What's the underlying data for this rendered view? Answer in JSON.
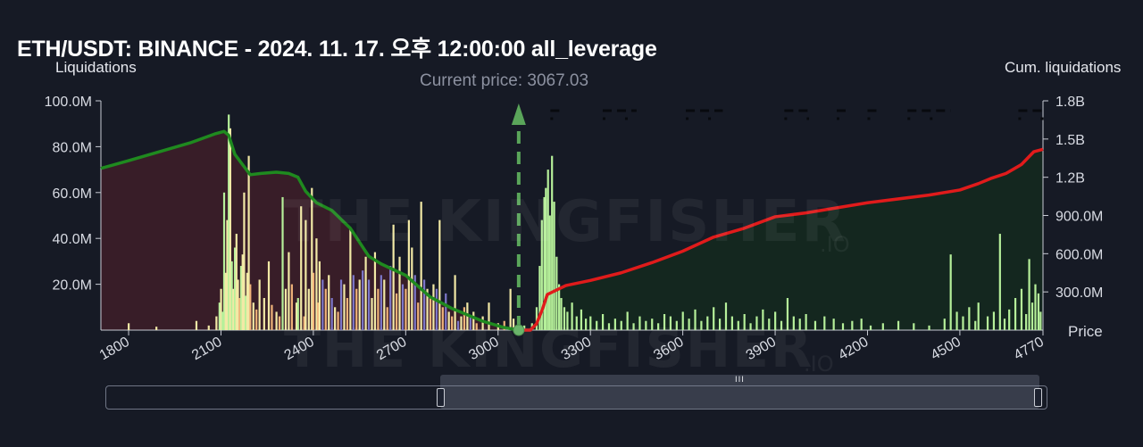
{
  "title": "ETH/USDT: BINANCE - 2024. 11. 17. 오후 12:00:00 all_leverage",
  "left_axis_name": "Liquidations",
  "right_axis_name": "Cum. liquidations",
  "current_price_label": "Current price: 3067.03",
  "price_axis_name": "Price",
  "watermark": {
    "main": "THE KINGFISHER",
    "suffix": ".IO"
  },
  "colors": {
    "background": "#161a25",
    "short_cum": "#1f8a1f",
    "long_cum": "#e01b1b",
    "short_area": "#3a1e28",
    "long_area": "#14281f",
    "bar_green": "#b6f09a",
    "bar_yellow": "#f2e9a6",
    "bar_orange": "#f0b37a",
    "bar_purple": "#7d77c9",
    "current_price_line": "#5aa55a"
  },
  "slider": {
    "grip": "III"
  },
  "chart_data": {
    "type": "bar+line",
    "xlim": [
      1710,
      4770
    ],
    "current_price": 3067.03,
    "x_ticks": [
      1800,
      2100,
      2400,
      2700,
      3000,
      3300,
      3600,
      3900,
      4200,
      4500,
      4770
    ],
    "x_tick_labels": [
      "1800",
      "2100",
      "2400",
      "2700",
      "3000",
      "3300",
      "3600",
      "3900",
      "4200",
      "4500",
      "4770"
    ],
    "left_axis": {
      "label": "Liquidations",
      "ylim": [
        0,
        100000000
      ],
      "ticks": [
        20000000,
        40000000,
        60000000,
        80000000,
        100000000
      ],
      "tick_labels": [
        "20.0M",
        "40.0M",
        "60.0M",
        "80.0M",
        "100.0M"
      ]
    },
    "right_axis": {
      "label": "Cum. liquidations",
      "ylim": [
        0,
        1800000000
      ],
      "ticks": [
        300000000,
        600000000,
        900000000,
        1200000000,
        1500000000,
        1800000000
      ],
      "tick_labels": [
        "300.0M",
        "600.0M",
        "900.0M",
        "1.2B",
        "1.5B",
        "1.8B"
      ]
    },
    "series": [
      {
        "kind": "cumulative_short_side",
        "color": "green",
        "points": [
          [
            1710,
            1270000000
          ],
          [
            1800,
            1330000000
          ],
          [
            1900,
            1400000000
          ],
          [
            2000,
            1470000000
          ],
          [
            2080,
            1540000000
          ],
          [
            2110,
            1560000000
          ],
          [
            2125,
            1530000000
          ],
          [
            2145,
            1380000000
          ],
          [
            2170,
            1300000000
          ],
          [
            2195,
            1220000000
          ],
          [
            2230,
            1230000000
          ],
          [
            2280,
            1240000000
          ],
          [
            2320,
            1230000000
          ],
          [
            2350,
            1200000000
          ],
          [
            2375,
            1090000000
          ],
          [
            2410,
            1000000000
          ],
          [
            2460,
            940000000
          ],
          [
            2520,
            800000000
          ],
          [
            2580,
            580000000
          ],
          [
            2620,
            520000000
          ],
          [
            2700,
            430000000
          ],
          [
            2780,
            260000000
          ],
          [
            2850,
            170000000
          ],
          [
            2950,
            70000000
          ],
          [
            3020,
            20000000
          ],
          [
            3067,
            0
          ]
        ]
      },
      {
        "kind": "cumulative_long_side",
        "color": "red",
        "points": [
          [
            3067,
            0
          ],
          [
            3105,
            0
          ],
          [
            3125,
            50000000
          ],
          [
            3145,
            170000000
          ],
          [
            3160,
            280000000
          ],
          [
            3220,
            350000000
          ],
          [
            3300,
            390000000
          ],
          [
            3400,
            450000000
          ],
          [
            3500,
            530000000
          ],
          [
            3600,
            620000000
          ],
          [
            3700,
            730000000
          ],
          [
            3800,
            800000000
          ],
          [
            3900,
            890000000
          ],
          [
            4000,
            920000000
          ],
          [
            4200,
            1000000000
          ],
          [
            4400,
            1060000000
          ],
          [
            4500,
            1100000000
          ],
          [
            4560,
            1150000000
          ],
          [
            4600,
            1190000000
          ],
          [
            4650,
            1230000000
          ],
          [
            4700,
            1300000000
          ],
          [
            4740,
            1400000000
          ],
          [
            4770,
            1420000000
          ]
        ]
      }
    ],
    "bars": [
      [
        1800,
        3000000,
        "bar_yellow"
      ],
      [
        1890,
        1500000,
        "bar_yellow"
      ],
      [
        2020,
        4000000,
        "bar_yellow"
      ],
      [
        2060,
        2000000,
        "bar_yellow"
      ],
      [
        2085,
        6000000,
        "bar_yellow"
      ],
      [
        2095,
        12000000,
        "bar_green"
      ],
      [
        2100,
        18000000,
        "bar_yellow"
      ],
      [
        2105,
        8000000,
        "bar_green"
      ],
      [
        2110,
        60000000,
        "bar_green"
      ],
      [
        2115,
        25000000,
        "bar_yellow"
      ],
      [
        2120,
        48000000,
        "bar_yellow"
      ],
      [
        2125,
        94000000,
        "bar_green"
      ],
      [
        2130,
        88000000,
        "bar_yellow"
      ],
      [
        2135,
        30000000,
        "bar_green"
      ],
      [
        2140,
        18000000,
        "bar_yellow"
      ],
      [
        2145,
        36000000,
        "bar_green"
      ],
      [
        2150,
        42000000,
        "bar_yellow"
      ],
      [
        2155,
        22000000,
        "bar_yellow"
      ],
      [
        2160,
        14000000,
        "bar_orange"
      ],
      [
        2165,
        28000000,
        "bar_green"
      ],
      [
        2170,
        33000000,
        "bar_yellow"
      ],
      [
        2175,
        60000000,
        "bar_yellow"
      ],
      [
        2180,
        15000000,
        "bar_green"
      ],
      [
        2185,
        25000000,
        "bar_yellow"
      ],
      [
        2190,
        76000000,
        "bar_yellow"
      ],
      [
        2195,
        20000000,
        "bar_orange"
      ],
      [
        2205,
        12000000,
        "bar_yellow"
      ],
      [
        2215,
        9000000,
        "bar_orange"
      ],
      [
        2225,
        22000000,
        "bar_yellow"
      ],
      [
        2240,
        14000000,
        "bar_yellow"
      ],
      [
        2255,
        30000000,
        "bar_yellow"
      ],
      [
        2265,
        11000000,
        "bar_orange"
      ],
      [
        2280,
        8000000,
        "bar_yellow"
      ],
      [
        2290,
        6000000,
        "bar_orange"
      ],
      [
        2300,
        58000000,
        "bar_green"
      ],
      [
        2310,
        18000000,
        "bar_yellow"
      ],
      [
        2320,
        34000000,
        "bar_yellow"
      ],
      [
        2330,
        20000000,
        "bar_orange"
      ],
      [
        2345,
        12000000,
        "bar_yellow"
      ],
      [
        2350,
        14000000,
        "bar_green"
      ],
      [
        2360,
        54000000,
        "bar_yellow"
      ],
      [
        2370,
        6000000,
        "bar_orange"
      ],
      [
        2375,
        48000000,
        "bar_yellow"
      ],
      [
        2385,
        18000000,
        "bar_yellow"
      ],
      [
        2395,
        62000000,
        "bar_yellow"
      ],
      [
        2400,
        25000000,
        "bar_orange"
      ],
      [
        2410,
        40000000,
        "bar_yellow"
      ],
      [
        2415,
        12000000,
        "bar_orange"
      ],
      [
        2420,
        30000000,
        "bar_yellow"
      ],
      [
        2430,
        22000000,
        "bar_purple"
      ],
      [
        2440,
        18000000,
        "bar_orange"
      ],
      [
        2450,
        24000000,
        "bar_yellow"
      ],
      [
        2460,
        14000000,
        "bar_purple"
      ],
      [
        2470,
        10000000,
        "bar_yellow"
      ],
      [
        2480,
        8000000,
        "bar_orange"
      ],
      [
        2490,
        22000000,
        "bar_purple"
      ],
      [
        2500,
        20000000,
        "bar_yellow"
      ],
      [
        2510,
        14000000,
        "bar_orange"
      ],
      [
        2520,
        44000000,
        "bar_yellow"
      ],
      [
        2530,
        24000000,
        "bar_purple"
      ],
      [
        2540,
        18000000,
        "bar_orange"
      ],
      [
        2550,
        22000000,
        "bar_yellow"
      ],
      [
        2560,
        26000000,
        "bar_purple"
      ],
      [
        2570,
        32000000,
        "bar_yellow"
      ],
      [
        2580,
        22000000,
        "bar_purple"
      ],
      [
        2590,
        14000000,
        "bar_yellow"
      ],
      [
        2600,
        34000000,
        "bar_yellow"
      ],
      [
        2610,
        18000000,
        "bar_orange"
      ],
      [
        2620,
        24000000,
        "bar_purple"
      ],
      [
        2630,
        22000000,
        "bar_yellow"
      ],
      [
        2640,
        10000000,
        "bar_orange"
      ],
      [
        2650,
        28000000,
        "bar_purple"
      ],
      [
        2660,
        46000000,
        "bar_yellow"
      ],
      [
        2670,
        16000000,
        "bar_orange"
      ],
      [
        2680,
        32000000,
        "bar_yellow"
      ],
      [
        2690,
        20000000,
        "bar_purple"
      ],
      [
        2700,
        18000000,
        "bar_orange"
      ],
      [
        2710,
        48000000,
        "bar_yellow"
      ],
      [
        2720,
        36000000,
        "bar_yellow"
      ],
      [
        2730,
        24000000,
        "bar_purple"
      ],
      [
        2740,
        12000000,
        "bar_orange"
      ],
      [
        2750,
        56000000,
        "bar_yellow"
      ],
      [
        2760,
        22000000,
        "bar_purple"
      ],
      [
        2770,
        18000000,
        "bar_yellow"
      ],
      [
        2780,
        14000000,
        "bar_orange"
      ],
      [
        2790,
        20000000,
        "bar_yellow"
      ],
      [
        2800,
        18000000,
        "bar_purple"
      ],
      [
        2810,
        48000000,
        "bar_yellow"
      ],
      [
        2820,
        10000000,
        "bar_orange"
      ],
      [
        2830,
        16000000,
        "bar_purple"
      ],
      [
        2840,
        8000000,
        "bar_yellow"
      ],
      [
        2850,
        6000000,
        "bar_orange"
      ],
      [
        2860,
        24000000,
        "bar_yellow"
      ],
      [
        2870,
        4000000,
        "bar_purple"
      ],
      [
        2880,
        6000000,
        "bar_yellow"
      ],
      [
        2890,
        10000000,
        "bar_orange"
      ],
      [
        2900,
        12000000,
        "bar_yellow"
      ],
      [
        2910,
        6000000,
        "bar_purple"
      ],
      [
        2920,
        8000000,
        "bar_yellow"
      ],
      [
        2930,
        3000000,
        "bar_orange"
      ],
      [
        2950,
        6000000,
        "bar_yellow"
      ],
      [
        2970,
        12000000,
        "bar_yellow"
      ],
      [
        3000,
        3000000,
        "bar_yellow"
      ],
      [
        3020,
        4000000,
        "bar_orange"
      ],
      [
        3040,
        18000000,
        "bar_yellow"
      ],
      [
        3050,
        5000000,
        "bar_yellow"
      ],
      [
        3085,
        2000000,
        "bar_green"
      ],
      [
        3110,
        3000000,
        "bar_green"
      ],
      [
        3125,
        10000000,
        "bar_green"
      ],
      [
        3135,
        28000000,
        "bar_green"
      ],
      [
        3142,
        48000000,
        "bar_green"
      ],
      [
        3150,
        58000000,
        "bar_green"
      ],
      [
        3155,
        62000000,
        "bar_green"
      ],
      [
        3162,
        70000000,
        "bar_green"
      ],
      [
        3168,
        50000000,
        "bar_green"
      ],
      [
        3175,
        76000000,
        "bar_green"
      ],
      [
        3182,
        56000000,
        "bar_green"
      ],
      [
        3190,
        32000000,
        "bar_green"
      ],
      [
        3198,
        20000000,
        "bar_green"
      ],
      [
        3205,
        14000000,
        "bar_green"
      ],
      [
        3215,
        10000000,
        "bar_green"
      ],
      [
        3225,
        8000000,
        "bar_green"
      ],
      [
        3240,
        12000000,
        "bar_green"
      ],
      [
        3255,
        6000000,
        "bar_green"
      ],
      [
        3270,
        9000000,
        "bar_green"
      ],
      [
        3285,
        5000000,
        "bar_green"
      ],
      [
        3300,
        6000000,
        "bar_green"
      ],
      [
        3320,
        4000000,
        "bar_green"
      ],
      [
        3340,
        7000000,
        "bar_green"
      ],
      [
        3360,
        3000000,
        "bar_green"
      ],
      [
        3380,
        5000000,
        "bar_green"
      ],
      [
        3400,
        4000000,
        "bar_green"
      ],
      [
        3420,
        8000000,
        "bar_green"
      ],
      [
        3440,
        3000000,
        "bar_green"
      ],
      [
        3460,
        6000000,
        "bar_green"
      ],
      [
        3480,
        4000000,
        "bar_green"
      ],
      [
        3500,
        5000000,
        "bar_green"
      ],
      [
        3520,
        3000000,
        "bar_green"
      ],
      [
        3540,
        7000000,
        "bar_green"
      ],
      [
        3560,
        6000000,
        "bar_green"
      ],
      [
        3580,
        4000000,
        "bar_green"
      ],
      [
        3600,
        8000000,
        "bar_green"
      ],
      [
        3620,
        5000000,
        "bar_green"
      ],
      [
        3640,
        9000000,
        "bar_green"
      ],
      [
        3660,
        4000000,
        "bar_green"
      ],
      [
        3680,
        6000000,
        "bar_green"
      ],
      [
        3700,
        10000000,
        "bar_green"
      ],
      [
        3720,
        5000000,
        "bar_green"
      ],
      [
        3740,
        12000000,
        "bar_green"
      ],
      [
        3760,
        6000000,
        "bar_green"
      ],
      [
        3780,
        4000000,
        "bar_green"
      ],
      [
        3800,
        7000000,
        "bar_green"
      ],
      [
        3820,
        3000000,
        "bar_green"
      ],
      [
        3840,
        6000000,
        "bar_green"
      ],
      [
        3860,
        9000000,
        "bar_green"
      ],
      [
        3880,
        5000000,
        "bar_green"
      ],
      [
        3900,
        8000000,
        "bar_green"
      ],
      [
        3920,
        4000000,
        "bar_green"
      ],
      [
        3940,
        14000000,
        "bar_green"
      ],
      [
        3960,
        6000000,
        "bar_green"
      ],
      [
        3980,
        5000000,
        "bar_green"
      ],
      [
        4000,
        7000000,
        "bar_green"
      ],
      [
        4030,
        4000000,
        "bar_green"
      ],
      [
        4060,
        6000000,
        "bar_green"
      ],
      [
        4090,
        5000000,
        "bar_green"
      ],
      [
        4120,
        3000000,
        "bar_green"
      ],
      [
        4150,
        4000000,
        "bar_green"
      ],
      [
        4180,
        5000000,
        "bar_green"
      ],
      [
        4210,
        2000000,
        "bar_green"
      ],
      [
        4250,
        3000000,
        "bar_green"
      ],
      [
        4300,
        4000000,
        "bar_green"
      ],
      [
        4350,
        3000000,
        "bar_green"
      ],
      [
        4400,
        2000000,
        "bar_green"
      ],
      [
        4450,
        5000000,
        "bar_green"
      ],
      [
        4470,
        33000000,
        "bar_green"
      ],
      [
        4490,
        8000000,
        "bar_green"
      ],
      [
        4510,
        6000000,
        "bar_green"
      ],
      [
        4530,
        10000000,
        "bar_green"
      ],
      [
        4550,
        4000000,
        "bar_green"
      ],
      [
        4560,
        12000000,
        "bar_green"
      ],
      [
        4590,
        6000000,
        "bar_green"
      ],
      [
        4610,
        8000000,
        "bar_green"
      ],
      [
        4630,
        42000000,
        "bar_green"
      ],
      [
        4645,
        5000000,
        "bar_green"
      ],
      [
        4660,
        9000000,
        "bar_green"
      ],
      [
        4680,
        14000000,
        "bar_green"
      ],
      [
        4700,
        18000000,
        "bar_green"
      ],
      [
        4715,
        7000000,
        "bar_green"
      ],
      [
        4725,
        31000000,
        "bar_green"
      ],
      [
        4735,
        12000000,
        "bar_green"
      ],
      [
        4745,
        20000000,
        "bar_green"
      ],
      [
        4755,
        16000000,
        "bar_green"
      ],
      [
        4762,
        8000000,
        "bar_green"
      ]
    ],
    "dashes_segments": [
      [
        3170,
        3215
      ],
      [
        3340,
        3450
      ],
      [
        3610,
        3730
      ],
      [
        3930,
        4010
      ],
      [
        4100,
        4140
      ],
      [
        4200,
        4230
      ],
      [
        4330,
        4470
      ],
      [
        4690,
        4780
      ]
    ]
  }
}
